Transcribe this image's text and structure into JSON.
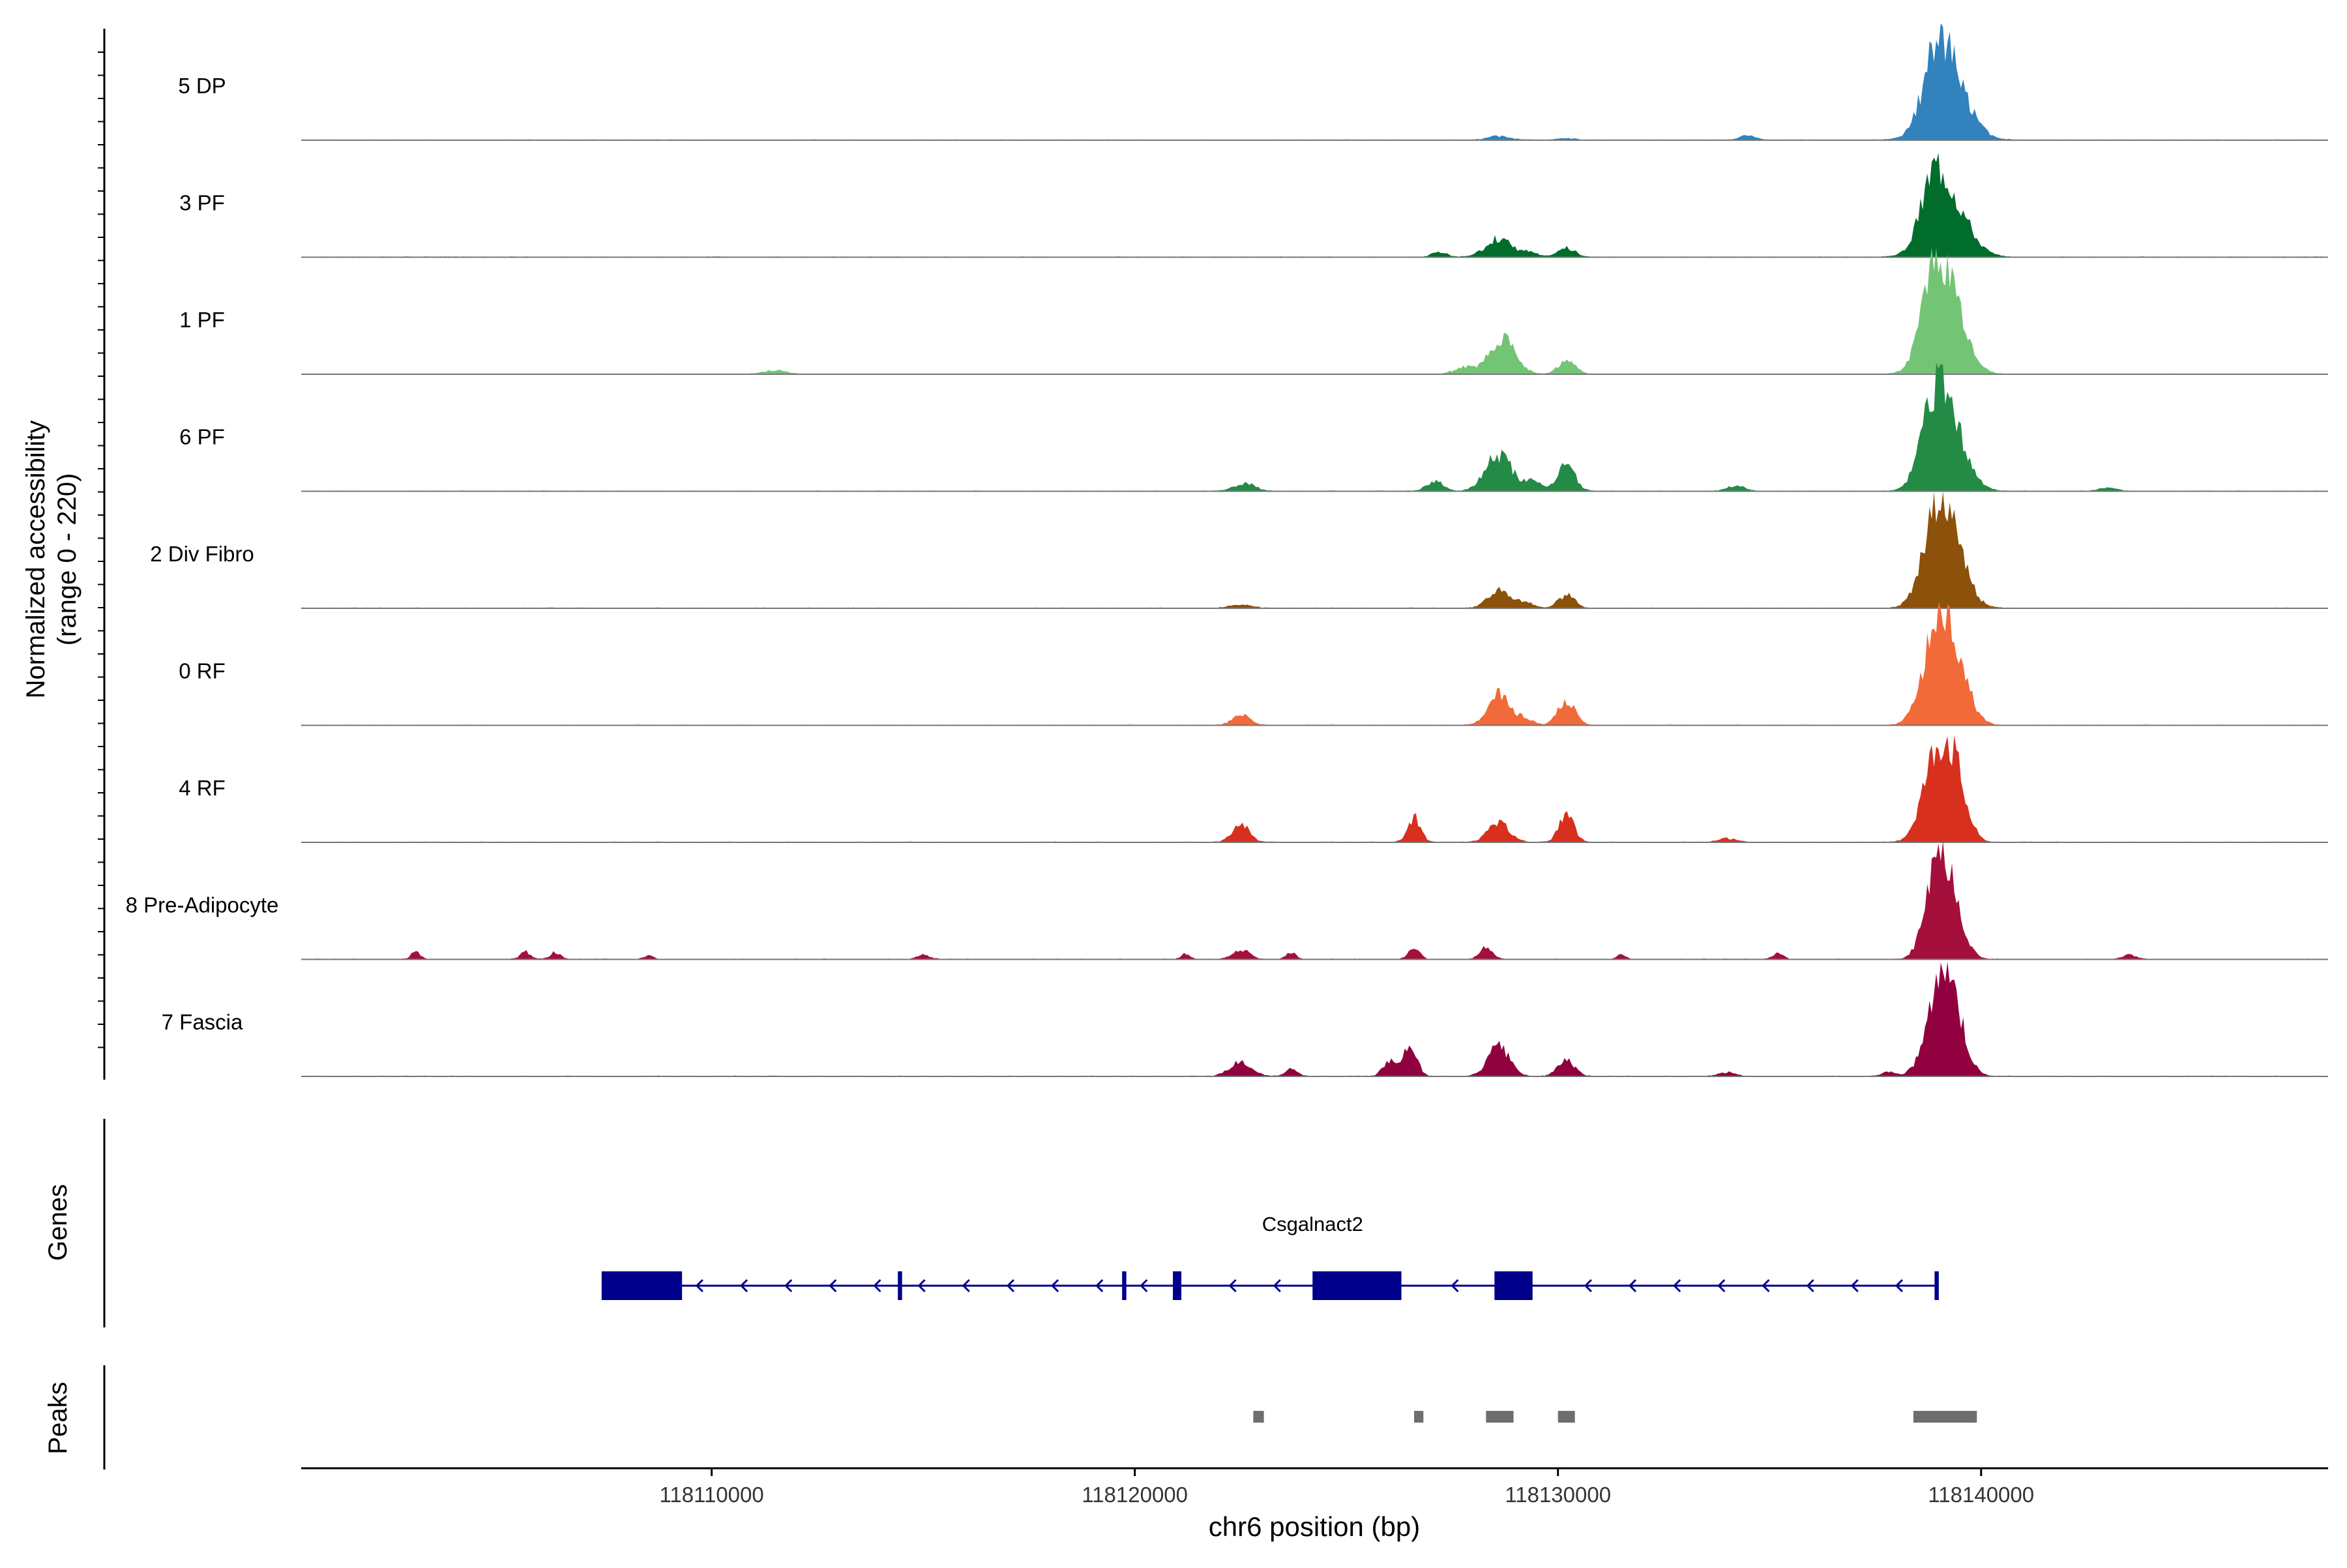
{
  "chart_data": {
    "type": "area",
    "title": "",
    "ylabel": [
      "Normalized accessibility",
      "(range 0 - 220)"
    ],
    "ylim": [
      0,
      220
    ],
    "xlabel": "chr6 position (bp)",
    "xlim": [
      118100300,
      118148200
    ],
    "x_ticks": [
      118110000,
      118120000,
      118130000,
      118140000
    ],
    "x_tick_labels": [
      "118110000",
      "118120000",
      "118130000",
      "118140000"
    ],
    "tracks": [
      {
        "name": "5 DP",
        "color": "#3182BD",
        "peaks": [
          [
            118139200,
            200,
            450
          ],
          [
            118138900,
            120,
            250
          ],
          [
            118128600,
            10,
            250
          ],
          [
            118134500,
            12,
            180
          ],
          [
            118130200,
            4,
            200
          ]
        ]
      },
      {
        "name": "3 PF",
        "color": "#006D2C",
        "peaks": [
          [
            118139200,
            170,
            450
          ],
          [
            118138850,
            110,
            280
          ],
          [
            118128600,
            50,
            300
          ],
          [
            118130200,
            24,
            200
          ],
          [
            118127200,
            12,
            180
          ],
          [
            118129300,
            12,
            200
          ]
        ]
      },
      {
        "name": "1 PF",
        "color": "#74C476",
        "peaks": [
          [
            118139200,
            200,
            400
          ],
          [
            118138850,
            150,
            300
          ],
          [
            118128700,
            100,
            300
          ],
          [
            118130200,
            35,
            200
          ],
          [
            118111500,
            10,
            250
          ],
          [
            118127800,
            18,
            250
          ]
        ]
      },
      {
        "name": "6 PF",
        "color": "#238B45",
        "peaks": [
          [
            118139200,
            200,
            400
          ],
          [
            118138850,
            130,
            300
          ],
          [
            118128600,
            100,
            300
          ],
          [
            118130200,
            70,
            200
          ],
          [
            118122600,
            20,
            250
          ],
          [
            118127100,
            25,
            200
          ],
          [
            118129400,
            25,
            200
          ],
          [
            118134200,
            15,
            200
          ],
          [
            118143000,
            10,
            200
          ]
        ]
      },
      {
        "name": "2 Div Fibro",
        "color": "#8C510A",
        "peaks": [
          [
            118139200,
            210,
            380
          ],
          [
            118138850,
            130,
            300
          ],
          [
            118128600,
            45,
            250
          ],
          [
            118130200,
            35,
            200
          ],
          [
            118129200,
            15,
            200
          ],
          [
            118122500,
            10,
            250
          ]
        ]
      },
      {
        "name": "0 RF",
        "color": "#F16A3A",
        "peaks": [
          [
            118139300,
            200,
            350
          ],
          [
            118138850,
            170,
            300
          ],
          [
            118128600,
            80,
            250
          ],
          [
            118130200,
            65,
            200
          ],
          [
            118122500,
            30,
            200
          ],
          [
            118129200,
            18,
            200
          ]
        ]
      },
      {
        "name": "4 RF",
        "color": "#D7301F",
        "peaks": [
          [
            118139300,
            210,
            300
          ],
          [
            118138850,
            170,
            300
          ],
          [
            118128600,
            50,
            250
          ],
          [
            118130200,
            70,
            180
          ],
          [
            118122500,
            50,
            200
          ],
          [
            118126600,
            65,
            150
          ],
          [
            118134000,
            10,
            200
          ]
        ]
      },
      {
        "name": "8 Pre-Adipocyte",
        "color": "#A50F3B",
        "peaks": [
          [
            118139200,
            210,
            300
          ],
          [
            118138850,
            120,
            250
          ],
          [
            118128300,
            30,
            150
          ],
          [
            118126600,
            35,
            120
          ],
          [
            118122500,
            25,
            200
          ],
          [
            118123700,
            18,
            120
          ],
          [
            118103000,
            22,
            100
          ],
          [
            118105600,
            20,
            120
          ],
          [
            118106300,
            18,
            120
          ],
          [
            118121200,
            15,
            100
          ],
          [
            118135200,
            15,
            120
          ],
          [
            118131500,
            12,
            100
          ],
          [
            118143500,
            12,
            150
          ],
          [
            118108500,
            10,
            100
          ],
          [
            118115000,
            12,
            150
          ]
        ]
      },
      {
        "name": "7 Fascia",
        "color": "#91003F",
        "peaks": [
          [
            118139300,
            190,
            300
          ],
          [
            118138900,
            150,
            280
          ],
          [
            118128600,
            80,
            250
          ],
          [
            118126500,
            85,
            160
          ],
          [
            118122500,
            40,
            250
          ],
          [
            118130200,
            40,
            200
          ],
          [
            118126000,
            40,
            150
          ],
          [
            118123700,
            18,
            150
          ],
          [
            118137800,
            12,
            150
          ],
          [
            118134000,
            10,
            200
          ]
        ]
      }
    ],
    "gene_panel_label": "Genes",
    "gene": {
      "name": "Csgalnact2",
      "strand": "-",
      "start": 118107400,
      "end": 118139000,
      "exons": [
        [
          118107400,
          118109300
        ],
        [
          118114400,
          118114500
        ],
        [
          118119700,
          118119800
        ],
        [
          118120900,
          118121100
        ],
        [
          118124200,
          118126300
        ],
        [
          118128500,
          118129400
        ],
        [
          118138900,
          118139000
        ]
      ],
      "color": "#00008B"
    },
    "peaks_panel_label": "Peaks",
    "peak_regions": [
      [
        118122800,
        118123050
      ],
      [
        118126600,
        118126820
      ],
      [
        118128300,
        118128950
      ],
      [
        118130000,
        118130400
      ],
      [
        118138400,
        118139900
      ]
    ],
    "peak_color": "#6E6E6E"
  }
}
